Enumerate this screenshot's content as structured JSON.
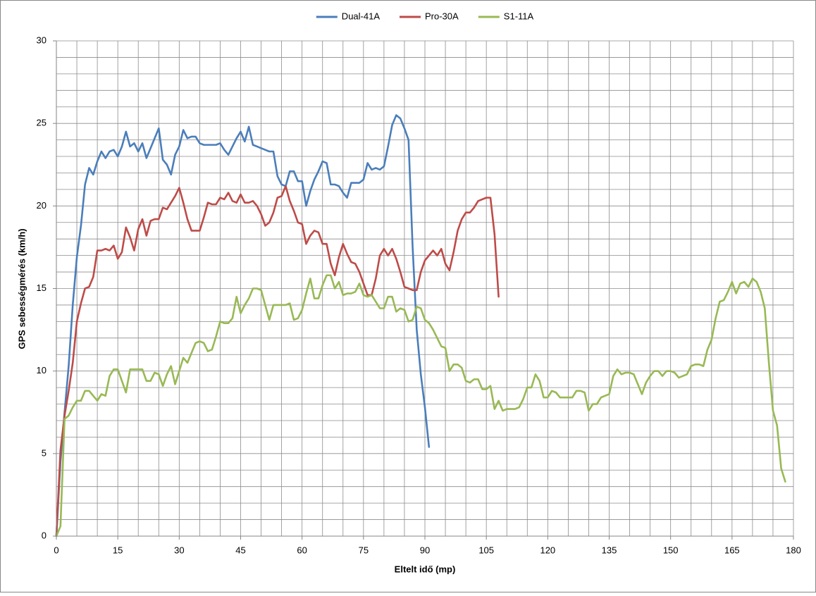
{
  "chart_data": {
    "type": "line",
    "x_label": "Eltelt idő (mp)",
    "y_label": "GPS sebességmérés (km/h)",
    "legend": "top",
    "xlim": [
      0,
      180
    ],
    "ylim": [
      0,
      30
    ],
    "xticks": [
      0,
      15,
      30,
      45,
      60,
      75,
      90,
      105,
      120,
      135,
      150,
      165,
      180
    ],
    "yticks": [
      0,
      5,
      10,
      15,
      20,
      25,
      30
    ],
    "xgrid": [
      0,
      5,
      10,
      15,
      20,
      25,
      30,
      35,
      40,
      45,
      50,
      55,
      60,
      65,
      70,
      75,
      80,
      85,
      90,
      95,
      100,
      105,
      110,
      115,
      120,
      125,
      130,
      135,
      140,
      145,
      150,
      155,
      160,
      165,
      170,
      175,
      180
    ],
    "ygrid": [
      0,
      1,
      2,
      3,
      4,
      5,
      6,
      7,
      8,
      9,
      10,
      11,
      12,
      13,
      14,
      15,
      16,
      17,
      18,
      19,
      20,
      21,
      22,
      23,
      24,
      25,
      26,
      27,
      28,
      29,
      30
    ],
    "x": [
      0,
      1,
      2,
      3,
      4,
      5,
      6,
      7,
      8,
      9,
      10,
      11,
      12,
      13,
      14,
      15,
      16,
      17,
      18,
      19,
      20,
      21,
      22,
      23,
      24,
      25,
      26,
      27,
      28,
      29,
      30,
      31,
      32,
      33,
      34,
      35,
      36,
      37,
      38,
      39,
      40,
      41,
      42,
      43,
      44,
      45,
      46,
      47,
      48,
      49,
      50,
      51,
      52,
      53,
      54,
      55,
      56,
      57,
      58,
      59,
      60,
      61,
      62,
      63,
      64,
      65,
      66,
      67,
      68,
      69,
      70,
      71,
      72,
      73,
      74,
      75,
      76,
      77,
      78,
      79,
      80,
      81,
      82,
      83,
      84,
      85,
      86,
      87,
      88,
      89,
      90,
      91,
      92,
      93,
      94,
      95,
      96,
      97,
      98,
      99,
      100,
      101,
      102,
      103,
      104,
      105,
      106,
      107,
      108,
      109,
      110,
      111,
      112,
      113,
      114,
      115,
      116,
      117,
      118,
      119,
      120,
      121,
      122,
      123,
      124,
      125,
      126,
      127,
      128,
      129,
      130,
      131,
      132,
      133,
      134,
      135,
      136,
      137,
      138,
      139,
      140,
      141,
      142,
      143,
      144,
      145,
      146,
      147,
      148,
      149,
      150,
      151,
      152,
      153,
      154,
      155,
      156,
      157,
      158,
      159,
      160,
      161,
      162,
      163,
      164,
      165,
      166,
      167,
      168,
      169,
      170,
      171,
      172,
      173,
      174,
      175,
      176,
      177,
      178
    ],
    "series": [
      {
        "name": "Dual-41A",
        "color": "#4a7ebb",
        "values": [
          0,
          4.5,
          7.5,
          10.3,
          14,
          16.9,
          18.8,
          21.3,
          22.3,
          21.9,
          22.7,
          23.3,
          22.9,
          23.3,
          23.4,
          23.0,
          23.6,
          24.5,
          23.6,
          23.8,
          23.3,
          23.8,
          22.9,
          23.5,
          24.1,
          24.7,
          22.8,
          22.5,
          21.9,
          23.1,
          23.6,
          24.6,
          24.1,
          24.2,
          24.2,
          23.8,
          23.7,
          23.7,
          23.7,
          23.7,
          23.8,
          23.4,
          23.1,
          23.6,
          24.1,
          24.5,
          23.9,
          24.8,
          23.7,
          23.6,
          23.5,
          23.4,
          23.3,
          23.3,
          21.8,
          21.3,
          21.2,
          22.1,
          22.1,
          21.5,
          21.5,
          20.0,
          20.9,
          21.6,
          22.1,
          22.7,
          22.6,
          21.3,
          21.3,
          21.2,
          20.8,
          20.5,
          21.4,
          21.4,
          21.4,
          21.6,
          22.6,
          22.2,
          22.3,
          22.2,
          22.4,
          23.6,
          24.9,
          25.5,
          25.3,
          24.7,
          24.0,
          17.5,
          12.5,
          9.8,
          7.8,
          5.4,
          null,
          null,
          null,
          null,
          null,
          null,
          null,
          null,
          null,
          null,
          null,
          null,
          null,
          null,
          null,
          null,
          null,
          null,
          null,
          null,
          null,
          null,
          null,
          null,
          null,
          null,
          null,
          null,
          null,
          null,
          null,
          null,
          null,
          null,
          null,
          null,
          null,
          null,
          null,
          null,
          null,
          null,
          null,
          null,
          null,
          null,
          null,
          null,
          null,
          null,
          null,
          null,
          null,
          null,
          null,
          null,
          null,
          null,
          null,
          null,
          null,
          null,
          null,
          null,
          null,
          null,
          null,
          null,
          null,
          null,
          null,
          null,
          null,
          null,
          null,
          null,
          null,
          null,
          null,
          null,
          null,
          null,
          null,
          null,
          null,
          null,
          null
        ]
      },
      {
        "name": "Pro-30A",
        "color": "#be4b48",
        "values": [
          0,
          5.2,
          7.3,
          8.8,
          10.5,
          13.0,
          14.1,
          15.0,
          15.1,
          15.7,
          17.3,
          17.3,
          17.4,
          17.3,
          17.6,
          16.8,
          17.2,
          18.7,
          18.1,
          17.3,
          18.6,
          19.2,
          18.2,
          19.1,
          19.2,
          19.2,
          19.9,
          19.8,
          20.2,
          20.6,
          21.1,
          20.2,
          19.2,
          18.5,
          18.5,
          18.5,
          19.3,
          20.2,
          20.1,
          20.1,
          20.5,
          20.4,
          20.8,
          20.3,
          20.2,
          20.7,
          20.2,
          20.2,
          20.3,
          20.0,
          19.5,
          18.8,
          19.0,
          19.6,
          20.5,
          20.6,
          21.2,
          20.3,
          19.7,
          19.0,
          18.9,
          17.7,
          18.2,
          18.5,
          18.4,
          17.7,
          17.7,
          16.5,
          15.8,
          16.9,
          17.7,
          17.1,
          16.6,
          16.5,
          16.0,
          15.3,
          14.6,
          14.6,
          15.6,
          17.0,
          17.4,
          17.0,
          17.4,
          16.8,
          16.0,
          15.1,
          15.0,
          14.9,
          14.9,
          16.0,
          16.7,
          17.0,
          17.3,
          17.0,
          17.4,
          16.5,
          16.1,
          17.2,
          18.5,
          19.2,
          19.6,
          19.6,
          19.9,
          20.3,
          20.4,
          20.5,
          20.5,
          18.3,
          14.5,
          null,
          null,
          null,
          null,
          null,
          null,
          null,
          null,
          null,
          null,
          null,
          null,
          null,
          null,
          null,
          null,
          null,
          null,
          null,
          null,
          null,
          null,
          null,
          null,
          null,
          null,
          null,
          null,
          null,
          null,
          null,
          null,
          null,
          null,
          null,
          null,
          null,
          null,
          null,
          null,
          null,
          null,
          null,
          null,
          null,
          null,
          null,
          null,
          null,
          null,
          null,
          null,
          null,
          null,
          null,
          null,
          null,
          null,
          null,
          null,
          null,
          null,
          null,
          null,
          null,
          null,
          null,
          null,
          null,
          null
        ]
      },
      {
        "name": "S1-11A",
        "color": "#98b954",
        "values": [
          0,
          0.6,
          7.1,
          7.3,
          7.8,
          8.2,
          8.2,
          8.8,
          8.8,
          8.5,
          8.2,
          8.6,
          8.5,
          9.7,
          10.1,
          10.1,
          9.4,
          8.7,
          10.1,
          10.1,
          10.1,
          10.1,
          9.4,
          9.4,
          9.9,
          9.8,
          9.1,
          9.8,
          10.3,
          9.2,
          10.0,
          10.8,
          10.5,
          11.1,
          11.7,
          11.8,
          11.7,
          11.2,
          11.3,
          12.1,
          13.0,
          12.9,
          12.9,
          13.2,
          14.5,
          13.5,
          14.0,
          14.4,
          15.0,
          15.0,
          14.9,
          14.0,
          13.1,
          14.0,
          14.0,
          14.0,
          14.0,
          14.1,
          13.1,
          13.2,
          13.7,
          14.7,
          15.6,
          14.4,
          14.4,
          15.2,
          15.8,
          15.8,
          15.0,
          15.4,
          14.6,
          14.7,
          14.7,
          14.8,
          15.3,
          14.6,
          14.5,
          14.6,
          14.2,
          13.8,
          13.8,
          14.5,
          14.5,
          13.6,
          13.8,
          13.7,
          13.0,
          13.1,
          13.9,
          13.8,
          13.1,
          12.9,
          12.5,
          12.0,
          11.5,
          11.4,
          10.0,
          10.4,
          10.4,
          10.2,
          9.4,
          9.3,
          9.5,
          9.5,
          8.9,
          8.9,
          9.1,
          7.7,
          8.2,
          7.6,
          7.7,
          7.7,
          7.7,
          7.8,
          8.3,
          9.0,
          9.0,
          9.8,
          9.4,
          8.4,
          8.4,
          8.8,
          8.7,
          8.4,
          8.4,
          8.4,
          8.4,
          8.8,
          8.8,
          8.7,
          7.6,
          8.0,
          8.0,
          8.4,
          8.5,
          8.6,
          9.7,
          10.1,
          9.8,
          9.9,
          9.9,
          9.8,
          9.2,
          8.6,
          9.3,
          9.7,
          10.0,
          10.0,
          9.7,
          10.0,
          10.0,
          9.9,
          9.6,
          9.7,
          9.8,
          10.3,
          10.4,
          10.4,
          10.3,
          11.3,
          11.9,
          13.2,
          14.2,
          14.3,
          14.8,
          15.4,
          14.7,
          15.3,
          15.4,
          15.1,
          15.6,
          15.4,
          14.8,
          13.8,
          10.5,
          7.6,
          6.7,
          4.1,
          3.3
        ]
      }
    ]
  }
}
